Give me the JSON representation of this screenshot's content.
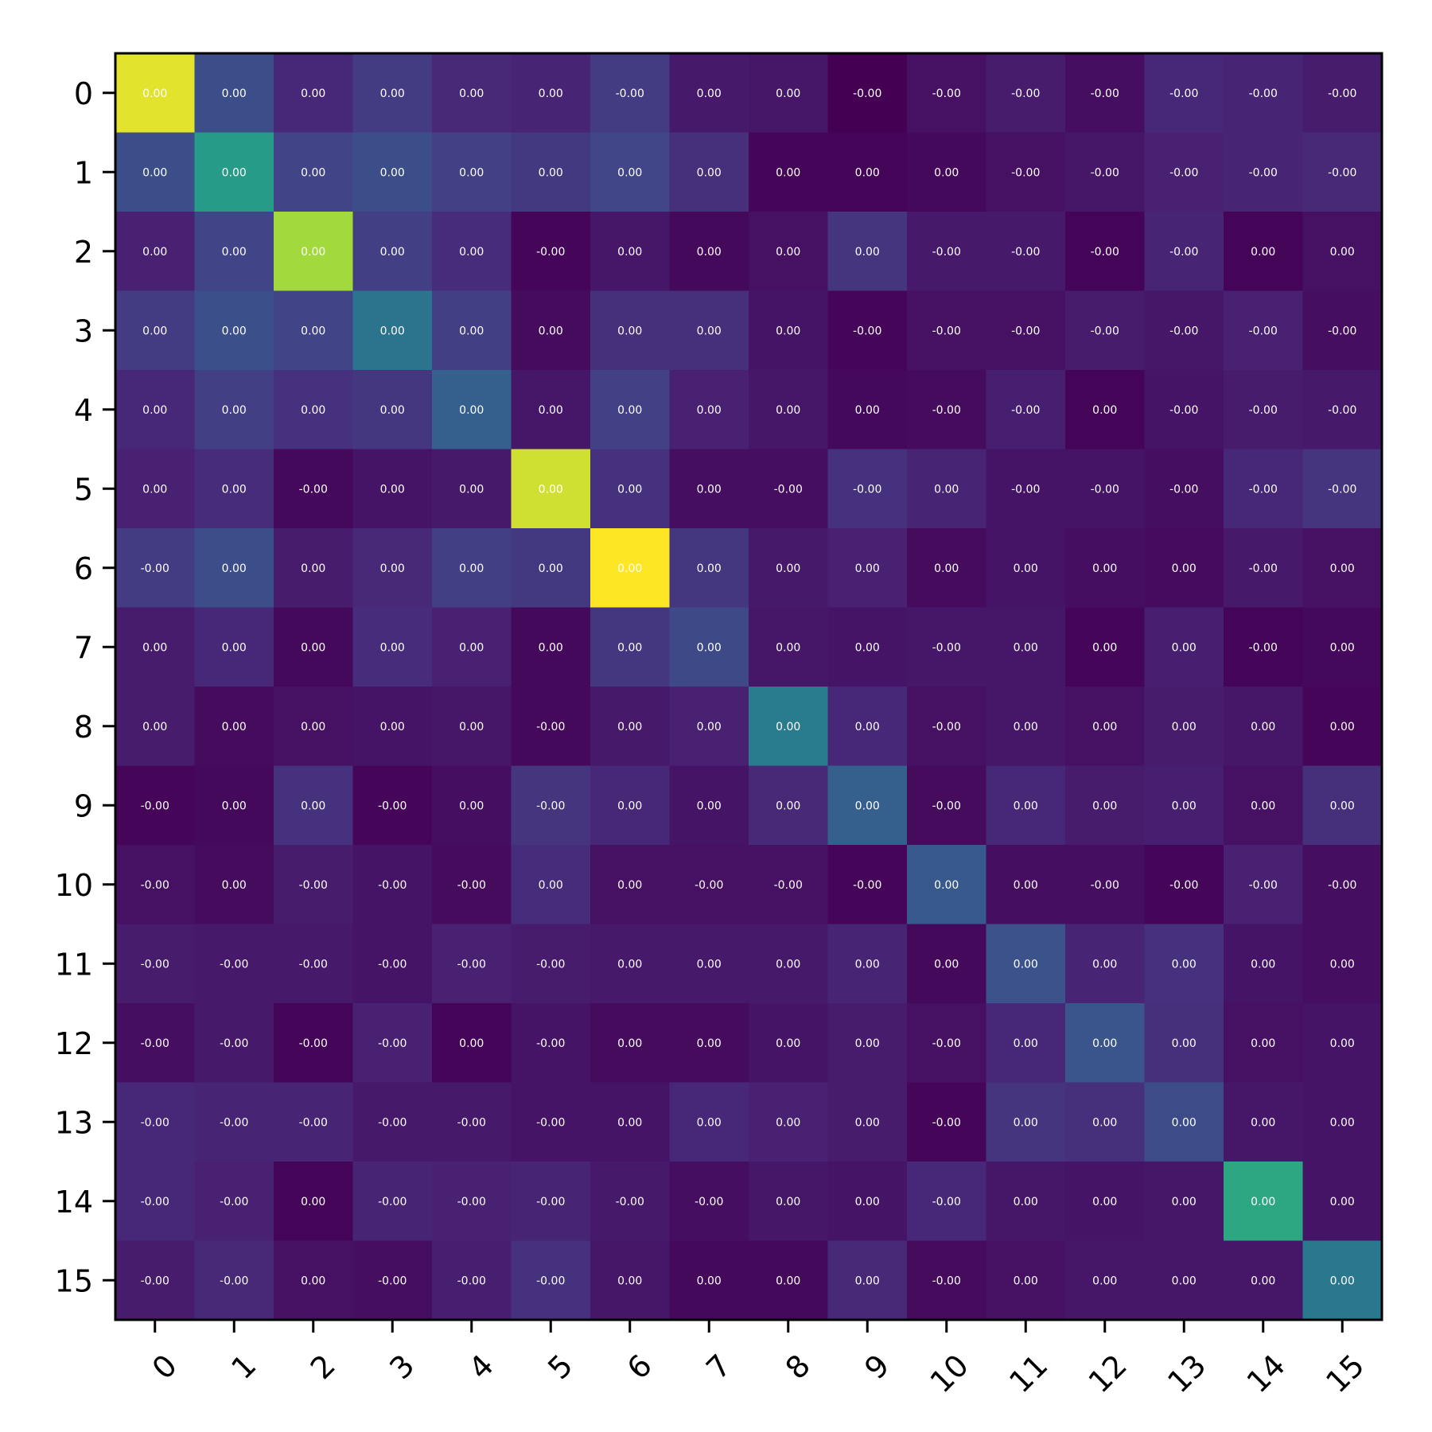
{
  "chart_data": {
    "type": "heatmap",
    "title": "",
    "xlabel": "",
    "ylabel": "",
    "x_ticks": [
      "0",
      "1",
      "2",
      "3",
      "4",
      "5",
      "6",
      "7",
      "8",
      "9",
      "10",
      "11",
      "12",
      "13",
      "14",
      "15"
    ],
    "y_ticks": [
      "0",
      "1",
      "2",
      "3",
      "4",
      "5",
      "6",
      "7",
      "8",
      "9",
      "10",
      "11",
      "12",
      "13",
      "14",
      "15"
    ],
    "colormap": "viridis",
    "x_tick_rotation": "45deg",
    "grid": false,
    "colorbar": false,
    "cell_labels": [
      [
        "0.00",
        "0.00",
        "0.00",
        "0.00",
        "0.00",
        "0.00",
        "-0.00",
        "0.00",
        "0.00",
        "-0.00",
        "-0.00",
        "-0.00",
        "-0.00",
        "-0.00",
        "-0.00",
        "-0.00"
      ],
      [
        "0.00",
        "0.00",
        "0.00",
        "0.00",
        "0.00",
        "0.00",
        "0.00",
        "0.00",
        "0.00",
        "0.00",
        "0.00",
        "-0.00",
        "-0.00",
        "-0.00",
        "-0.00",
        "-0.00"
      ],
      [
        "0.00",
        "0.00",
        "0.00",
        "0.00",
        "0.00",
        "-0.00",
        "0.00",
        "0.00",
        "0.00",
        "0.00",
        "-0.00",
        "-0.00",
        "-0.00",
        "-0.00",
        "0.00",
        "0.00"
      ],
      [
        "0.00",
        "0.00",
        "0.00",
        "0.00",
        "0.00",
        "0.00",
        "0.00",
        "0.00",
        "0.00",
        "-0.00",
        "-0.00",
        "-0.00",
        "-0.00",
        "-0.00",
        "-0.00",
        "-0.00"
      ],
      [
        "0.00",
        "0.00",
        "0.00",
        "0.00",
        "0.00",
        "0.00",
        "0.00",
        "0.00",
        "0.00",
        "0.00",
        "-0.00",
        "-0.00",
        "0.00",
        "-0.00",
        "-0.00",
        "-0.00"
      ],
      [
        "0.00",
        "0.00",
        "-0.00",
        "0.00",
        "0.00",
        "0.00",
        "0.00",
        "0.00",
        "-0.00",
        "-0.00",
        "0.00",
        "-0.00",
        "-0.00",
        "-0.00",
        "-0.00",
        "-0.00"
      ],
      [
        "-0.00",
        "0.00",
        "0.00",
        "0.00",
        "0.00",
        "0.00",
        "0.00",
        "0.00",
        "0.00",
        "0.00",
        "0.00",
        "0.00",
        "0.00",
        "0.00",
        "-0.00",
        "0.00"
      ],
      [
        "0.00",
        "0.00",
        "0.00",
        "0.00",
        "0.00",
        "0.00",
        "0.00",
        "0.00",
        "0.00",
        "0.00",
        "-0.00",
        "0.00",
        "0.00",
        "0.00",
        "-0.00",
        "0.00"
      ],
      [
        "0.00",
        "0.00",
        "0.00",
        "0.00",
        "0.00",
        "-0.00",
        "0.00",
        "0.00",
        "0.00",
        "0.00",
        "-0.00",
        "0.00",
        "0.00",
        "0.00",
        "0.00",
        "0.00"
      ],
      [
        "-0.00",
        "0.00",
        "0.00",
        "-0.00",
        "0.00",
        "-0.00",
        "0.00",
        "0.00",
        "0.00",
        "0.00",
        "-0.00",
        "0.00",
        "0.00",
        "0.00",
        "0.00",
        "0.00"
      ],
      [
        "-0.00",
        "0.00",
        "-0.00",
        "-0.00",
        "-0.00",
        "0.00",
        "0.00",
        "-0.00",
        "-0.00",
        "-0.00",
        "0.00",
        "0.00",
        "-0.00",
        "-0.00",
        "-0.00",
        "-0.00"
      ],
      [
        "-0.00",
        "-0.00",
        "-0.00",
        "-0.00",
        "-0.00",
        "-0.00",
        "0.00",
        "0.00",
        "0.00",
        "0.00",
        "0.00",
        "0.00",
        "0.00",
        "0.00",
        "0.00",
        "0.00"
      ],
      [
        "-0.00",
        "-0.00",
        "-0.00",
        "-0.00",
        "0.00",
        "-0.00",
        "0.00",
        "0.00",
        "0.00",
        "0.00",
        "-0.00",
        "0.00",
        "0.00",
        "0.00",
        "0.00",
        "0.00"
      ],
      [
        "-0.00",
        "-0.00",
        "-0.00",
        "-0.00",
        "-0.00",
        "-0.00",
        "0.00",
        "0.00",
        "0.00",
        "0.00",
        "-0.00",
        "0.00",
        "0.00",
        "0.00",
        "0.00",
        "0.00"
      ],
      [
        "-0.00",
        "-0.00",
        "0.00",
        "-0.00",
        "-0.00",
        "-0.00",
        "-0.00",
        "-0.00",
        "0.00",
        "0.00",
        "-0.00",
        "0.00",
        "0.00",
        "0.00",
        "0.00",
        "0.00"
      ],
      [
        "-0.00",
        "-0.00",
        "0.00",
        "-0.00",
        "-0.00",
        "-0.00",
        "0.00",
        "0.00",
        "0.00",
        "0.00",
        "-0.00",
        "0.00",
        "0.00",
        "0.00",
        "0.00",
        "0.00"
      ]
    ],
    "intensity": [
      [
        0.97,
        0.3,
        0.14,
        0.22,
        0.15,
        0.13,
        0.22,
        0.09,
        0.08,
        0.0,
        0.06,
        0.1,
        0.05,
        0.14,
        0.13,
        0.1
      ],
      [
        0.3,
        0.66,
        0.25,
        0.3,
        0.24,
        0.21,
        0.26,
        0.17,
        0.02,
        0.01,
        0.03,
        0.06,
        0.08,
        0.12,
        0.13,
        0.15
      ],
      [
        0.12,
        0.25,
        0.9,
        0.23,
        0.16,
        0.02,
        0.08,
        0.03,
        0.06,
        0.19,
        0.09,
        0.09,
        0.01,
        0.13,
        0.01,
        0.06
      ],
      [
        0.22,
        0.31,
        0.25,
        0.48,
        0.23,
        0.04,
        0.17,
        0.17,
        0.07,
        0.02,
        0.06,
        0.06,
        0.1,
        0.08,
        0.12,
        0.05
      ],
      [
        0.14,
        0.23,
        0.18,
        0.2,
        0.38,
        0.08,
        0.24,
        0.12,
        0.08,
        0.03,
        0.04,
        0.11,
        0.01,
        0.07,
        0.1,
        0.09
      ],
      [
        0.12,
        0.16,
        0.03,
        0.07,
        0.09,
        0.95,
        0.18,
        0.05,
        0.05,
        0.18,
        0.13,
        0.07,
        0.07,
        0.05,
        0.14,
        0.19
      ],
      [
        0.22,
        0.3,
        0.1,
        0.15,
        0.23,
        0.21,
        1.0,
        0.2,
        0.09,
        0.12,
        0.04,
        0.07,
        0.05,
        0.04,
        0.09,
        0.06
      ],
      [
        0.1,
        0.14,
        0.03,
        0.16,
        0.12,
        0.03,
        0.2,
        0.28,
        0.08,
        0.07,
        0.08,
        0.08,
        0.02,
        0.11,
        0.01,
        0.03
      ],
      [
        0.1,
        0.04,
        0.06,
        0.07,
        0.08,
        0.03,
        0.09,
        0.12,
        0.52,
        0.14,
        0.06,
        0.08,
        0.06,
        0.1,
        0.08,
        0.02
      ],
      [
        0.02,
        0.03,
        0.18,
        0.02,
        0.05,
        0.19,
        0.14,
        0.07,
        0.15,
        0.38,
        0.04,
        0.14,
        0.1,
        0.11,
        0.06,
        0.17
      ],
      [
        0.06,
        0.04,
        0.1,
        0.07,
        0.04,
        0.16,
        0.06,
        0.06,
        0.06,
        0.02,
        0.35,
        0.05,
        0.05,
        0.02,
        0.12,
        0.05
      ],
      [
        0.1,
        0.09,
        0.09,
        0.07,
        0.12,
        0.1,
        0.09,
        0.09,
        0.09,
        0.13,
        0.03,
        0.32,
        0.13,
        0.18,
        0.07,
        0.05
      ],
      [
        0.05,
        0.09,
        0.01,
        0.12,
        0.01,
        0.07,
        0.04,
        0.04,
        0.07,
        0.1,
        0.06,
        0.14,
        0.33,
        0.17,
        0.06,
        0.07
      ],
      [
        0.14,
        0.13,
        0.13,
        0.09,
        0.09,
        0.07,
        0.07,
        0.14,
        0.12,
        0.1,
        0.02,
        0.19,
        0.17,
        0.29,
        0.08,
        0.07
      ],
      [
        0.14,
        0.12,
        0.01,
        0.13,
        0.12,
        0.13,
        0.09,
        0.05,
        0.08,
        0.07,
        0.14,
        0.08,
        0.07,
        0.08,
        0.7,
        0.07
      ],
      [
        0.1,
        0.15,
        0.06,
        0.05,
        0.11,
        0.18,
        0.08,
        0.03,
        0.03,
        0.15,
        0.04,
        0.06,
        0.08,
        0.08,
        0.08,
        0.5
      ]
    ]
  }
}
